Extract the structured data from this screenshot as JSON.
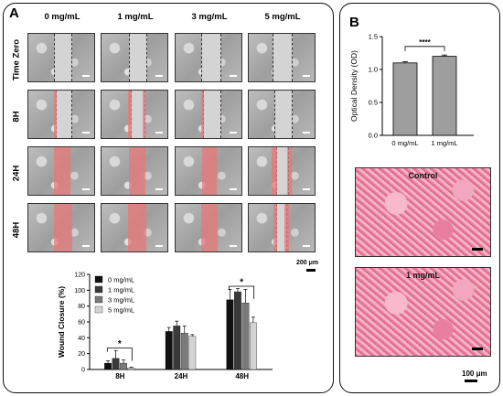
{
  "panel_a": {
    "letter": "A",
    "col_headers": [
      "0 mg/mL",
      "1 mg/mL",
      "3 mg/mL",
      "5 mg/mL"
    ],
    "row_labels": [
      "Time Zero",
      "8H",
      "24H",
      "48H"
    ],
    "scale_label": "200 μm"
  },
  "panel_b": {
    "letter": "B",
    "histology_labels": [
      "Control",
      "1 mg/mL"
    ],
    "scale_label": "100 μm"
  },
  "chart_data": [
    {
      "type": "bar",
      "ylabel": "Wound Closure (%)",
      "xlabel": "",
      "categories": [
        "8H",
        "24H",
        "48H"
      ],
      "ylim": [
        0,
        120
      ],
      "yticks": [
        0,
        20,
        40,
        60,
        80,
        100,
        120
      ],
      "series": [
        {
          "name": "0 mg/mL",
          "color": "#111111",
          "values": [
            8,
            48,
            88
          ],
          "errors": [
            3,
            5,
            13
          ]
        },
        {
          "name": "1 mg/mL",
          "color": "#3a3a3a",
          "values": [
            14,
            55,
            98
          ],
          "errors": [
            10,
            6,
            4
          ]
        },
        {
          "name": "3 mg/mL",
          "color": "#7a7a7a",
          "values": [
            8,
            46,
            84
          ],
          "errors": [
            4,
            9,
            17
          ]
        },
        {
          "name": "5 mg/mL",
          "color": "#d3d3d3",
          "values": [
            2,
            42,
            59
          ],
          "errors": [
            1,
            2,
            7
          ]
        }
      ],
      "significance": [
        {
          "group": "8H",
          "label": "*"
        },
        {
          "group": "48H",
          "label": "*"
        }
      ],
      "legend_position": "top-left"
    },
    {
      "type": "bar",
      "ylabel": "Optical Density (OD)",
      "xlabel": "",
      "categories": [
        "0 mg/mL",
        "1 mg/mL"
      ],
      "values": [
        1.1,
        1.2
      ],
      "errors": [
        0.02,
        0.02
      ],
      "ylim": [
        0,
        1.5
      ],
      "yticks": [
        0.0,
        0.5,
        1.0,
        1.5
      ],
      "color": "#9e9e9e",
      "significance": [
        {
          "label": "****"
        }
      ]
    }
  ]
}
